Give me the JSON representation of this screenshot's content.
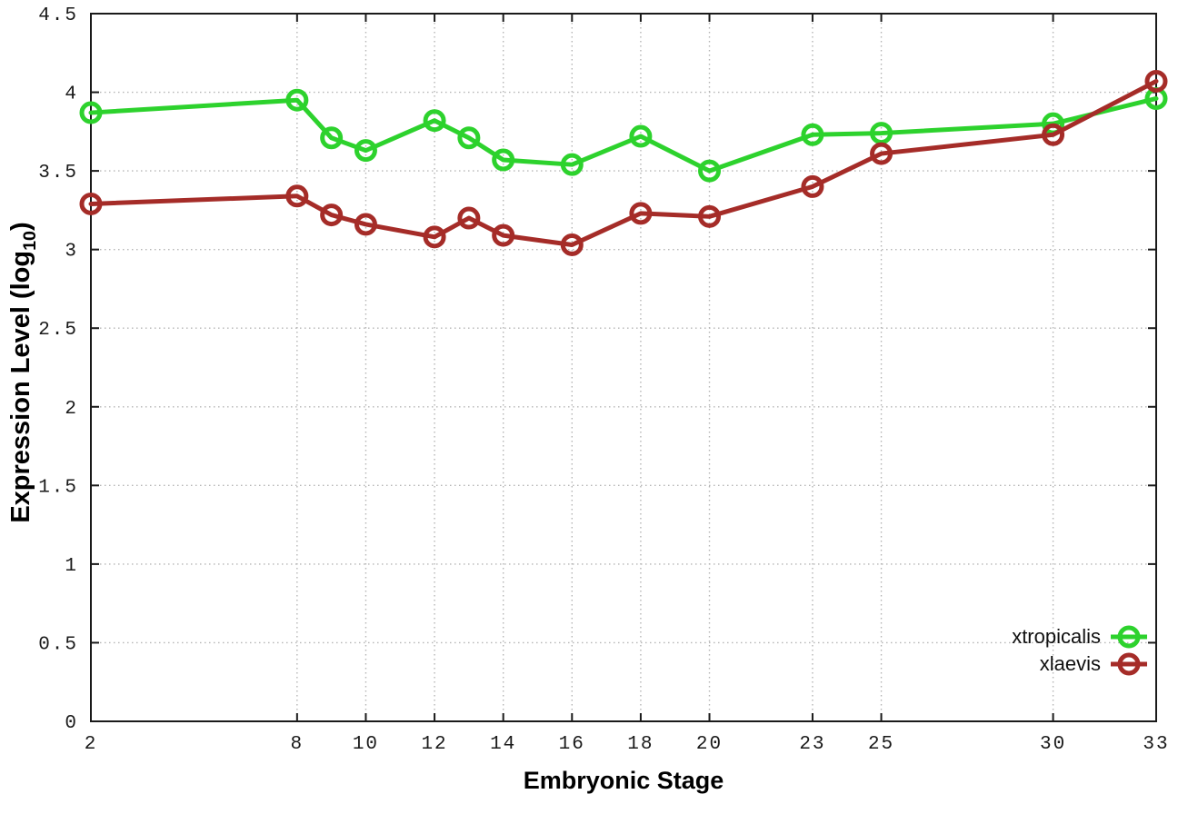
{
  "chart_data": {
    "type": "line",
    "title": "",
    "xlabel": "Embryonic Stage",
    "ylabel": "Expression Level (log10)",
    "ylabel_parts": {
      "main": "Expression Level (log",
      "sub": "10",
      "close": ")"
    },
    "x": [
      2,
      8,
      9,
      10,
      12,
      13,
      14,
      16,
      18,
      20,
      23,
      25,
      30,
      33
    ],
    "series": [
      {
        "name": "xtropicalis",
        "color": "#2dd22d",
        "values": [
          3.87,
          3.95,
          3.71,
          3.63,
          3.82,
          3.71,
          3.57,
          3.54,
          3.72,
          3.5,
          3.73,
          3.74,
          3.8,
          3.96
        ]
      },
      {
        "name": "xlaevis",
        "color": "#a52c28",
        "values": [
          3.29,
          3.34,
          3.22,
          3.16,
          3.08,
          3.2,
          3.09,
          3.03,
          3.23,
          3.21,
          3.4,
          3.61,
          3.73,
          4.07
        ]
      }
    ],
    "xlim": [
      2,
      33
    ],
    "ylim": [
      0,
      4.5
    ],
    "x_ticks": [
      2,
      8,
      10,
      12,
      14,
      16,
      18,
      20,
      23,
      25,
      30,
      33
    ],
    "x_tick_labels": [
      "2",
      "8",
      "10",
      "12",
      "14",
      "16",
      "18",
      "20",
      "23",
      "25",
      "30",
      "33"
    ],
    "y_ticks": [
      0,
      0.5,
      1,
      1.5,
      2,
      2.5,
      3,
      3.5,
      4,
      4.5
    ],
    "y_tick_labels": [
      "0",
      "0.5",
      "1",
      "1.5",
      "2",
      "2.5",
      "3",
      "3.5",
      "4",
      "4.5"
    ],
    "grid": true,
    "legend_position": "bottom-right",
    "marker": "open-circle"
  }
}
